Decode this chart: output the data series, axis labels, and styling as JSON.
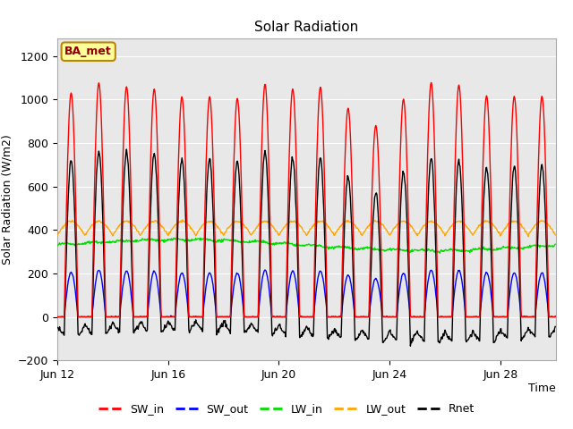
{
  "title": "Solar Radiation",
  "xlabel": "Time",
  "ylabel": "Solar Radiation (W/m2)",
  "ylim": [
    -200,
    1280
  ],
  "yticks": [
    -200,
    0,
    200,
    400,
    600,
    800,
    1000,
    1200
  ],
  "n_days": 18,
  "n_per_day": 48,
  "line_colors": {
    "SW_in": "#ff0000",
    "SW_out": "#0000ff",
    "LW_in": "#00dd00",
    "LW_out": "#ffa500",
    "Rnet": "#000000"
  },
  "annotation": "BA_met",
  "annotation_color": "#8b0000",
  "annotation_bg": "#ffff99",
  "annotation_edge": "#b8860b",
  "bg_color": "#e8e8e8",
  "xtick_labels": [
    "Jun 12",
    "Jun 16",
    "Jun 20",
    "Jun 24",
    "Jun 28"
  ],
  "xtick_days": [
    12,
    16,
    20,
    24,
    28
  ],
  "lw_in_base": 330,
  "lw_in_amp": 25,
  "lw_out_base": 375,
  "lw_out_amp": 65
}
